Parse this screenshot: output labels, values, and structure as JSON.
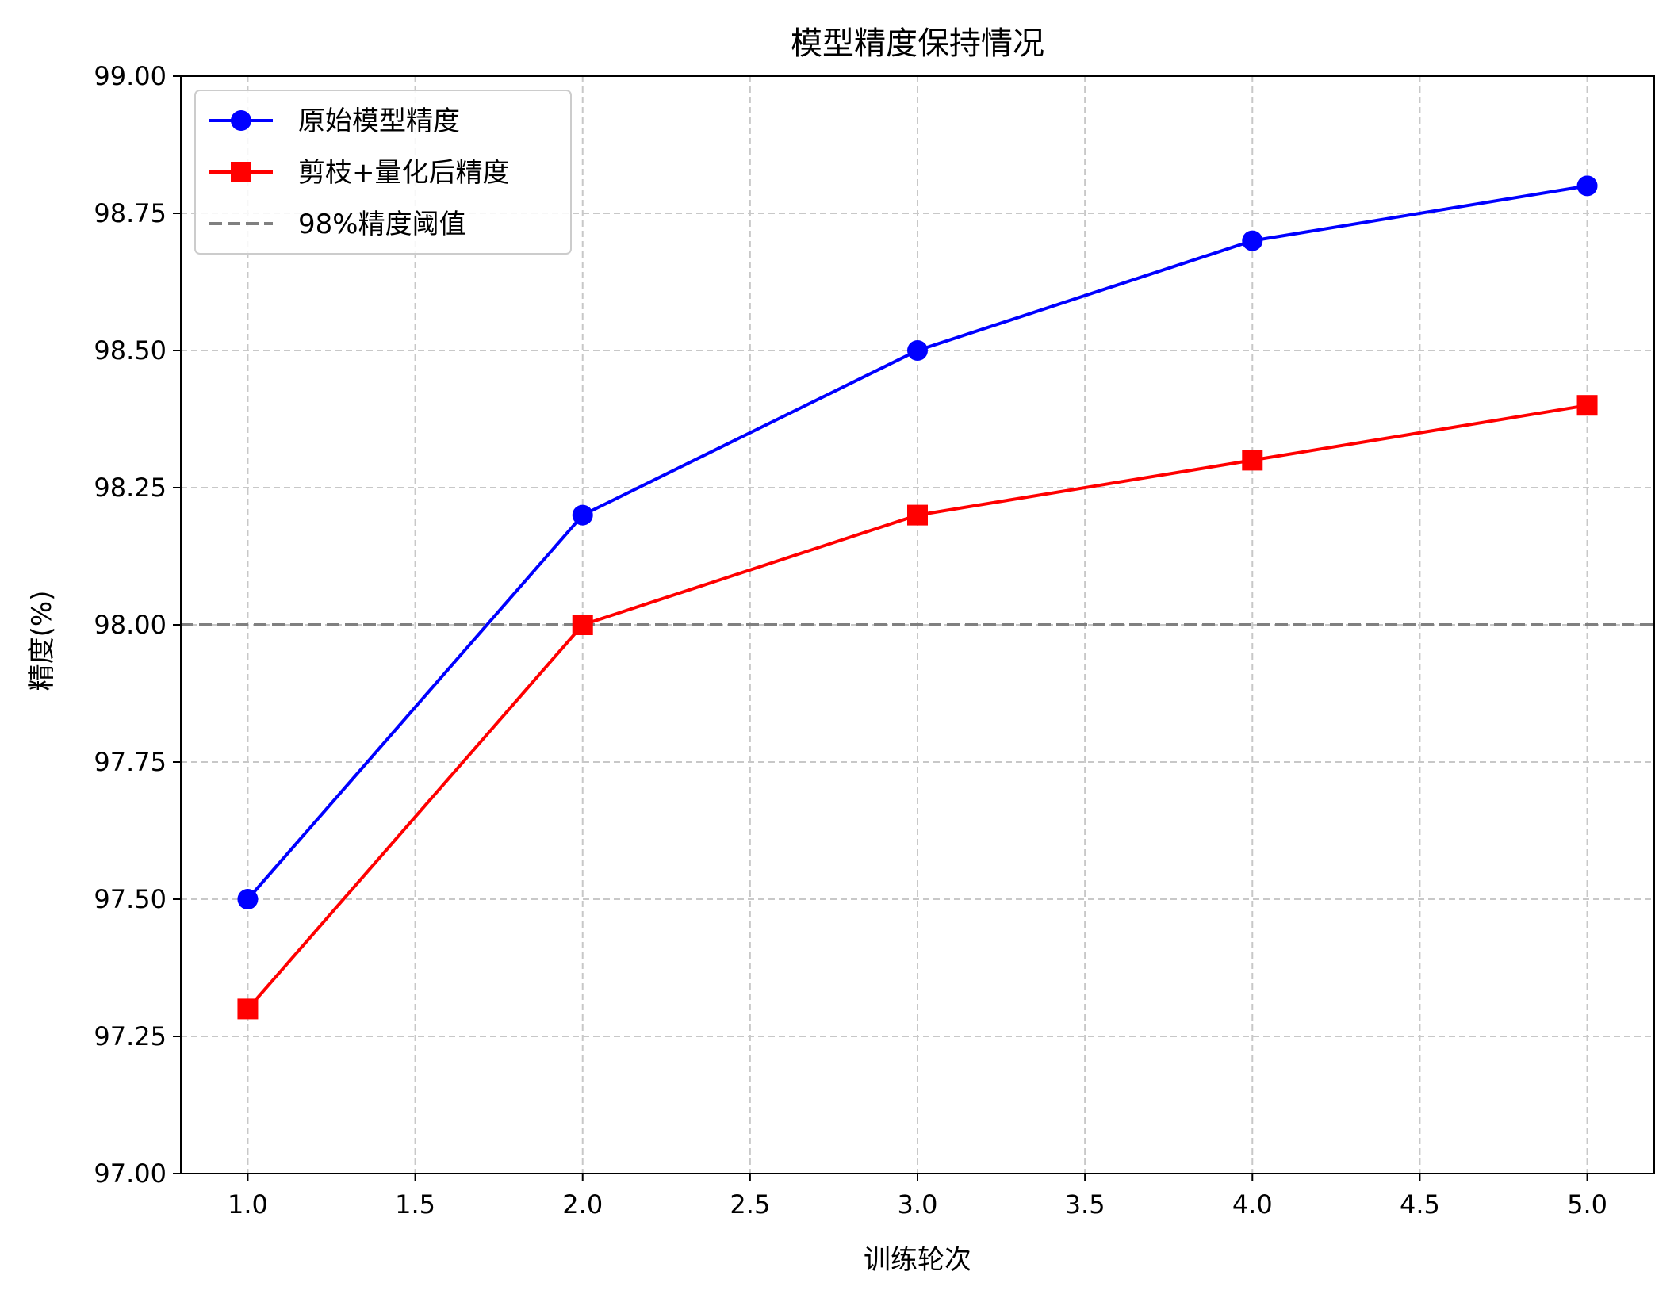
{
  "chart_data": {
    "type": "line",
    "title": "模型精度保持情况",
    "xlabel": "训练轮次",
    "ylabel": "精度(%)",
    "xlim": [
      0.8,
      5.2
    ],
    "ylim": [
      97.0,
      99.0
    ],
    "xticks": [
      1.0,
      1.5,
      2.0,
      2.5,
      3.0,
      3.5,
      4.0,
      4.5,
      5.0
    ],
    "xtick_labels": [
      "1.0",
      "1.5",
      "2.0",
      "2.5",
      "3.0",
      "3.5",
      "4.0",
      "4.5",
      "5.0"
    ],
    "yticks": [
      97.0,
      97.25,
      97.5,
      97.75,
      98.0,
      98.25,
      98.5,
      98.75,
      99.0
    ],
    "ytick_labels": [
      "97.00",
      "97.25",
      "97.50",
      "97.75",
      "98.00",
      "98.25",
      "98.50",
      "98.75",
      "99.00"
    ],
    "grid": true,
    "legend_position": "top-left",
    "x": [
      1,
      2,
      3,
      4,
      5
    ],
    "series": [
      {
        "name": "原始模型精度",
        "values": [
          97.5,
          98.2,
          98.5,
          98.7,
          98.8
        ],
        "color": "#0000ff",
        "marker": "circle"
      },
      {
        "name": "剪枝+量化后精度",
        "values": [
          97.3,
          98.0,
          98.2,
          98.3,
          98.4
        ],
        "color": "#ff0000",
        "marker": "square"
      }
    ],
    "reference_line": {
      "name": "98%精度阈值",
      "y": 98.0,
      "color": "#808080",
      "style": "dashed"
    }
  }
}
